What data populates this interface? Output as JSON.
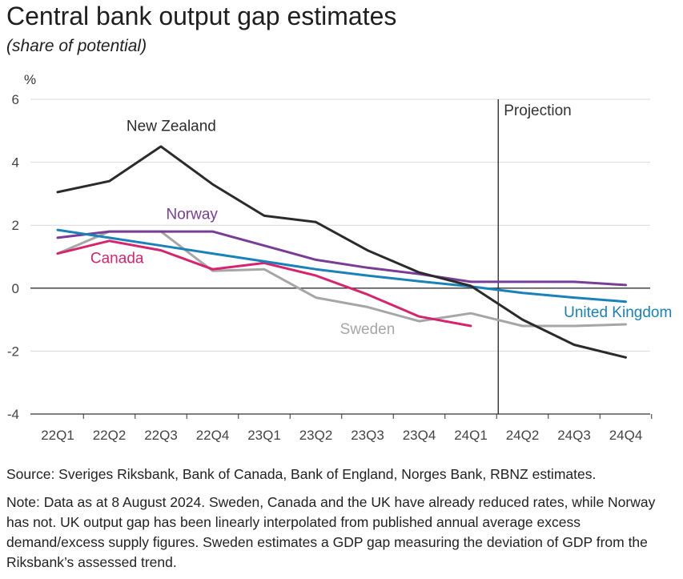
{
  "title": "Central bank output gap estimates",
  "subtitle": "(share of potential)",
  "source": "Source: Sveriges Riksbank, Bank of Canada, Bank of England, Norges Bank, RBNZ estimates.",
  "note": "Note: Data as at 8 August 2024. Sweden, Canada and the UK have already reduced rates, while Norway has not. UK output gap has been linearly interpolated from published annual average excess demand/excess supply figures. Sweden estimates a GDP gap measuring the deviation of GDP from the Riksbank’s assessed trend.",
  "chart_data": {
    "type": "line",
    "ylabel": "%",
    "ylim": [
      -4,
      6
    ],
    "yticks": [
      "6",
      "4",
      "2",
      "0",
      "-2",
      "-4"
    ],
    "categories": [
      "22Q1",
      "22Q2",
      "22Q3",
      "22Q4",
      "23Q1",
      "23Q2",
      "23Q3",
      "23Q4",
      "24Q1",
      "24Q2",
      "24Q3",
      "24Q4"
    ],
    "projection_label": "Projection",
    "projection_start": "24Q2",
    "grid": true,
    "series": [
      {
        "name": "Sweden",
        "color": "#a6a6a6",
        "values": [
          1.1,
          1.8,
          1.8,
          0.55,
          0.6,
          -0.3,
          -0.6,
          -1.05,
          -0.8,
          -1.2,
          -1.2,
          -1.15
        ]
      },
      {
        "name": "Canada",
        "color": "#d6246e",
        "values": [
          1.1,
          1.5,
          1.2,
          0.6,
          0.8,
          0.4,
          -0.2,
          -0.9,
          -1.2,
          null,
          null,
          null
        ]
      },
      {
        "name": "Norway",
        "color": "#7a3d96",
        "values": [
          1.6,
          1.8,
          1.8,
          1.8,
          1.35,
          0.9,
          0.65,
          0.45,
          0.2,
          0.2,
          0.2,
          0.1
        ]
      },
      {
        "name": "United Kingdom",
        "color": "#1a82b8",
        "values": [
          1.85,
          1.6,
          1.35,
          1.1,
          0.85,
          0.6,
          0.4,
          0.22,
          0.05,
          -0.15,
          -0.3,
          -0.43
        ]
      },
      {
        "name": "New Zealand",
        "color": "#2b2b2b",
        "values": [
          3.05,
          3.4,
          4.5,
          3.3,
          2.3,
          2.1,
          1.2,
          0.5,
          0.07,
          -1.0,
          -1.8,
          -2.2
        ]
      }
    ]
  }
}
